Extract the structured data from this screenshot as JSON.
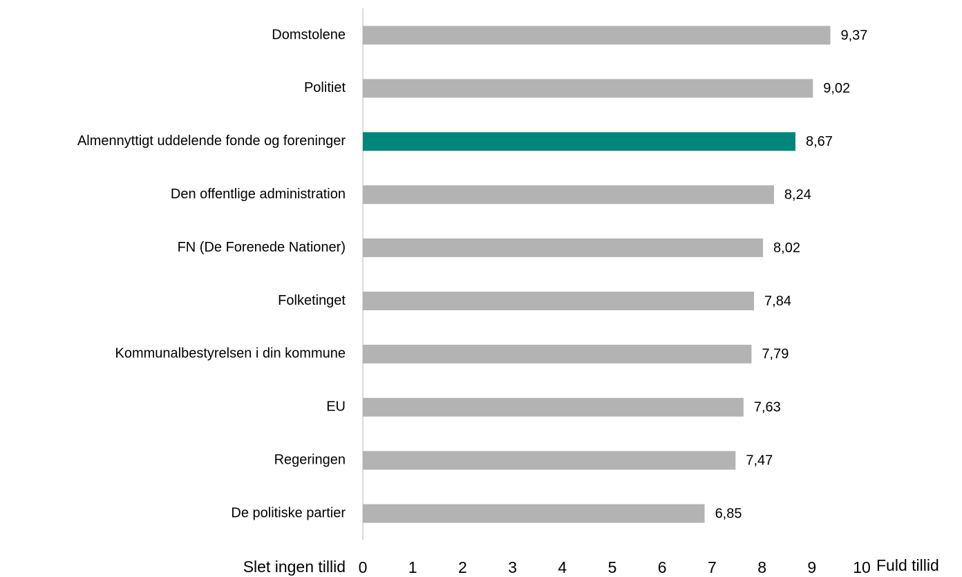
{
  "chart_data": {
    "type": "hbar",
    "categories": [
      "Domstolene",
      "Politiet",
      "Almennyttigt uddelende fonde og foreninger",
      "Den offentlige administration",
      "FN (De Forenede Nationer)",
      "Folketinget",
      "Kommunalbestyrelsen i din kommune",
      "EU",
      "Regeringen",
      "De politiske partier"
    ],
    "values": [
      9.37,
      9.02,
      8.67,
      8.24,
      8.02,
      7.84,
      7.79,
      7.63,
      7.47,
      6.85
    ],
    "value_labels": [
      "9,37",
      "9,02",
      "8,67",
      "8,24",
      "8,02",
      "7,84",
      "7,79",
      "7,63",
      "7,47",
      "6,85"
    ],
    "colors": [
      "#b3b3b3",
      "#b3b3b3",
      "#00857a",
      "#b3b3b3",
      "#b3b3b3",
      "#b3b3b3",
      "#b3b3b3",
      "#b3b3b3",
      "#b3b3b3",
      "#b3b3b3"
    ],
    "xlim": [
      0,
      10
    ],
    "xticks": [
      0,
      1,
      2,
      3,
      4,
      5,
      6,
      7,
      8,
      9,
      10
    ],
    "x_min_label": "Slet ingen tillid",
    "x_max_label": "Fuld tillid",
    "grid": false
  }
}
